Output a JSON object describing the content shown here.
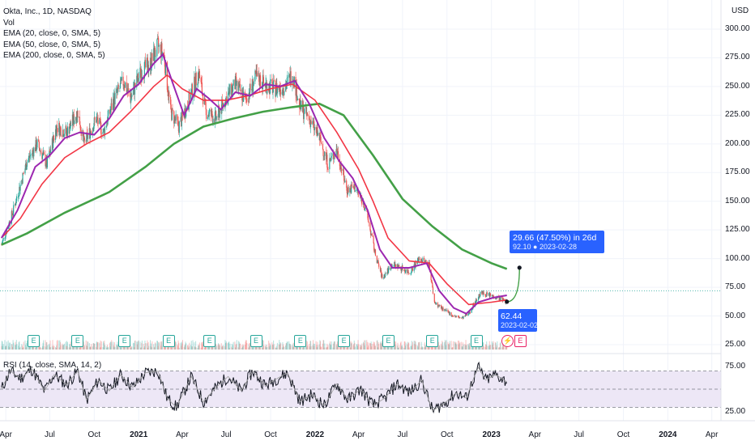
{
  "legend": {
    "title": "Okta, Inc., 1D, NASDAQ",
    "vol": "Vol",
    "ema20": "EMA (20, close, 0, SMA, 5)",
    "ema50": "EMA (50, close, 0, SMA, 5)",
    "ema200": "EMA (200, close, 0, SMA, 5)"
  },
  "rsi_legend": "RSI (14, close, SMA, 14, 2)",
  "currency": "USD",
  "y_ticks": [
    "300.00",
    "275.00",
    "250.00",
    "225.00",
    "200.00",
    "175.00",
    "150.00",
    "125.00",
    "100.00",
    "75.00",
    "50.00",
    "25.00"
  ],
  "rsi_ticks": [
    "75.00",
    "25.00"
  ],
  "x_ticks": [
    {
      "label": "Apr",
      "bold": false
    },
    {
      "label": "Jul",
      "bold": false
    },
    {
      "label": "Oct",
      "bold": false
    },
    {
      "label": "2021",
      "bold": true
    },
    {
      "label": "Apr",
      "bold": false
    },
    {
      "label": "Jul",
      "bold": false
    },
    {
      "label": "Oct",
      "bold": false
    },
    {
      "label": "2022",
      "bold": true
    },
    {
      "label": "Apr",
      "bold": false
    },
    {
      "label": "Jul",
      "bold": false
    },
    {
      "label": "Oct",
      "bold": false
    },
    {
      "label": "2023",
      "bold": true
    },
    {
      "label": "Apr",
      "bold": false
    },
    {
      "label": "Jul",
      "bold": false
    },
    {
      "label": "Oct",
      "bold": false
    },
    {
      "label": "2024",
      "bold": true
    },
    {
      "label": "Apr",
      "bold": false
    }
  ],
  "callouts": {
    "target": {
      "line1": "29.66 (47.50%) in 26d",
      "line2": "92.10 ● 2023-02-28"
    },
    "current": {
      "line1": "62.44",
      "line2": "2023-02-02"
    }
  },
  "events": {
    "earnings_label": "E",
    "dividend_label": "⚡"
  },
  "colors": {
    "up": "#26a69a",
    "down": "#ef5350",
    "ema20": "#9c27b0",
    "ema50": "#f23645",
    "ema200": "#43a047",
    "accent": "#2962ff",
    "rsi_band": "#ede7f6",
    "rsi_line": "#131722"
  },
  "chart_data": {
    "type": "line",
    "symbol": "Okta, Inc.",
    "interval": "1D",
    "exchange": "NASDAQ",
    "y_range": [
      25,
      305
    ],
    "x_range": [
      "2020-03-20",
      "2024-04-20"
    ],
    "close_series": [
      [
        "2020-03-23",
        112
      ],
      [
        "2020-04-15",
        140
      ],
      [
        "2020-05-15",
        185
      ],
      [
        "2020-06-05",
        200
      ],
      [
        "2020-06-25",
        182
      ],
      [
        "2020-07-15",
        215
      ],
      [
        "2020-08-05",
        210
      ],
      [
        "2020-08-28",
        228
      ],
      [
        "2020-09-10",
        200
      ],
      [
        "2020-10-05",
        222
      ],
      [
        "2020-10-20",
        210
      ],
      [
        "2020-11-10",
        238
      ],
      [
        "2020-12-01",
        255
      ],
      [
        "2020-12-15",
        240
      ],
      [
        "2021-01-05",
        262
      ],
      [
        "2021-01-25",
        270
      ],
      [
        "2021-02-10",
        285
      ],
      [
        "2021-02-22",
        278
      ],
      [
        "2021-03-08",
        228
      ],
      [
        "2021-03-25",
        215
      ],
      [
        "2021-04-15",
        238
      ],
      [
        "2021-05-05",
        262
      ],
      [
        "2021-05-20",
        228
      ],
      [
        "2021-06-10",
        222
      ],
      [
        "2021-07-01",
        240
      ],
      [
        "2021-07-20",
        252
      ],
      [
        "2021-08-10",
        238
      ],
      [
        "2021-09-01",
        258
      ],
      [
        "2021-09-20",
        252
      ],
      [
        "2021-10-10",
        248
      ],
      [
        "2021-11-01",
        250
      ],
      [
        "2021-11-15",
        262
      ],
      [
        "2021-12-01",
        232
      ],
      [
        "2021-12-20",
        222
      ],
      [
        "2022-01-10",
        205
      ],
      [
        "2022-01-28",
        182
      ],
      [
        "2022-02-15",
        195
      ],
      [
        "2022-03-08",
        160
      ],
      [
        "2022-03-25",
        162
      ],
      [
        "2022-04-15",
        145
      ],
      [
        "2022-05-05",
        105
      ],
      [
        "2022-05-20",
        83
      ],
      [
        "2022-06-10",
        95
      ],
      [
        "2022-06-28",
        92
      ],
      [
        "2022-07-15",
        88
      ],
      [
        "2022-08-05",
        100
      ],
      [
        "2022-08-25",
        95
      ],
      [
        "2022-09-05",
        62
      ],
      [
        "2022-09-25",
        55
      ],
      [
        "2022-10-15",
        50
      ],
      [
        "2022-11-01",
        48
      ],
      [
        "2022-11-15",
        52
      ],
      [
        "2022-11-28",
        62
      ],
      [
        "2022-12-10",
        70
      ],
      [
        "2022-12-28",
        68
      ],
      [
        "2023-01-15",
        66
      ],
      [
        "2023-02-02",
        62.44
      ]
    ],
    "ema20_series": [
      [
        "2020-03-23",
        118
      ],
      [
        "2020-04-25",
        142
      ],
      [
        "2020-06-01",
        180
      ],
      [
        "2020-07-01",
        190
      ],
      [
        "2020-08-01",
        205
      ],
      [
        "2020-09-01",
        210
      ],
      [
        "2020-10-01",
        208
      ],
      [
        "2020-11-01",
        222
      ],
      [
        "2020-12-01",
        242
      ],
      [
        "2021-01-01",
        252
      ],
      [
        "2021-02-01",
        270
      ],
      [
        "2021-02-20",
        278
      ],
      [
        "2021-03-15",
        250
      ],
      [
        "2021-04-05",
        225
      ],
      [
        "2021-05-01",
        248
      ],
      [
        "2021-05-25",
        240
      ],
      [
        "2021-06-20",
        230
      ],
      [
        "2021-07-20",
        245
      ],
      [
        "2021-08-20",
        242
      ],
      [
        "2021-09-20",
        252
      ],
      [
        "2021-10-20",
        250
      ],
      [
        "2021-11-20",
        255
      ],
      [
        "2021-12-20",
        235
      ],
      [
        "2022-01-20",
        205
      ],
      [
        "2022-02-20",
        185
      ],
      [
        "2022-03-20",
        170
      ],
      [
        "2022-04-20",
        142
      ],
      [
        "2022-05-15",
        108
      ],
      [
        "2022-06-10",
        92
      ],
      [
        "2022-07-15",
        92
      ],
      [
        "2022-08-20",
        96
      ],
      [
        "2022-09-15",
        72
      ],
      [
        "2022-10-15",
        57
      ],
      [
        "2022-11-10",
        52
      ],
      [
        "2022-12-05",
        62
      ],
      [
        "2023-01-05",
        66
      ],
      [
        "2023-02-02",
        68
      ]
    ],
    "ema50_series": [
      [
        "2020-03-23",
        118
      ],
      [
        "2020-05-01",
        135
      ],
      [
        "2020-06-15",
        165
      ],
      [
        "2020-08-01",
        188
      ],
      [
        "2020-09-15",
        200
      ],
      [
        "2020-11-01",
        210
      ],
      [
        "2020-12-15",
        228
      ],
      [
        "2021-02-01",
        250
      ],
      [
        "2021-03-01",
        260
      ],
      [
        "2021-04-01",
        248
      ],
      [
        "2021-05-15",
        238
      ],
      [
        "2021-07-01",
        238
      ],
      [
        "2021-08-15",
        242
      ],
      [
        "2021-10-01",
        248
      ],
      [
        "2021-11-15",
        252
      ],
      [
        "2022-01-01",
        238
      ],
      [
        "2022-02-15",
        210
      ],
      [
        "2022-04-01",
        178
      ],
      [
        "2022-05-01",
        150
      ],
      [
        "2022-06-01",
        118
      ],
      [
        "2022-07-15",
        98
      ],
      [
        "2022-08-25",
        96
      ],
      [
        "2022-10-01",
        78
      ],
      [
        "2022-11-15",
        60
      ],
      [
        "2023-01-01",
        62
      ],
      [
        "2023-02-02",
        64
      ]
    ],
    "ema200_series": [
      [
        "2020-03-23",
        112
      ],
      [
        "2020-05-15",
        122
      ],
      [
        "2020-08-01",
        140
      ],
      [
        "2020-11-01",
        158
      ],
      [
        "2021-01-15",
        180
      ],
      [
        "2021-03-15",
        200
      ],
      [
        "2021-05-15",
        215
      ],
      [
        "2021-07-15",
        222
      ],
      [
        "2021-09-15",
        228
      ],
      [
        "2021-11-15",
        232
      ],
      [
        "2022-01-10",
        235
      ],
      [
        "2022-03-01",
        225
      ],
      [
        "2022-05-01",
        190
      ],
      [
        "2022-07-01",
        152
      ],
      [
        "2022-09-01",
        128
      ],
      [
        "2022-11-01",
        108
      ],
      [
        "2023-01-01",
        96
      ],
      [
        "2023-02-02",
        91
      ]
    ],
    "rsi_series": [
      [
        "2020-03-23",
        50
      ],
      [
        "2020-04-10",
        70
      ],
      [
        "2020-05-01",
        62
      ],
      [
        "2020-05-25",
        72
      ],
      [
        "2020-06-20",
        48
      ],
      [
        "2020-07-10",
        66
      ],
      [
        "2020-08-05",
        55
      ],
      [
        "2020-08-28",
        70
      ],
      [
        "2020-09-15",
        38
      ],
      [
        "2020-10-10",
        60
      ],
      [
        "2020-11-01",
        48
      ],
      [
        "2020-11-25",
        66
      ],
      [
        "2020-12-20",
        52
      ],
      [
        "2021-01-15",
        68
      ],
      [
        "2021-02-10",
        70
      ],
      [
        "2021-03-01",
        40
      ],
      [
        "2021-03-20",
        30
      ],
      [
        "2021-04-20",
        64
      ],
      [
        "2021-05-15",
        36
      ],
      [
        "2021-06-10",
        52
      ],
      [
        "2021-07-05",
        64
      ],
      [
        "2021-08-01",
        48
      ],
      [
        "2021-08-25",
        70
      ],
      [
        "2021-09-20",
        54
      ],
      [
        "2021-10-15",
        62
      ],
      [
        "2021-11-05",
        68
      ],
      [
        "2021-12-01",
        36
      ],
      [
        "2021-12-25",
        44
      ],
      [
        "2022-01-20",
        32
      ],
      [
        "2022-02-15",
        56
      ],
      [
        "2022-03-10",
        38
      ],
      [
        "2022-04-05",
        50
      ],
      [
        "2022-05-01",
        32
      ],
      [
        "2022-05-25",
        40
      ],
      [
        "2022-06-20",
        56
      ],
      [
        "2022-07-15",
        46
      ],
      [
        "2022-08-10",
        60
      ],
      [
        "2022-09-01",
        26
      ],
      [
        "2022-09-25",
        34
      ],
      [
        "2022-10-20",
        46
      ],
      [
        "2022-11-10",
        40
      ],
      [
        "2022-11-25",
        62
      ],
      [
        "2022-12-05",
        74
      ],
      [
        "2022-12-20",
        60
      ],
      [
        "2023-01-10",
        66
      ],
      [
        "2023-02-02",
        58
      ]
    ],
    "rsi_range": [
      15,
      80
    ],
    "rsi_levels": [
      70,
      50,
      30
    ],
    "current_price": 62.44,
    "target_price": 92.1,
    "projection": {
      "from_date": "2023-02-02",
      "to_date": "2023-02-28",
      "change": "29.66 (47.50%) in 26d"
    },
    "earnings_dates": [
      "2020-05-28",
      "2020-08-27",
      "2020-12-02",
      "2021-03-03",
      "2021-05-27",
      "2021-08-31",
      "2021-12-01",
      "2022-03-01",
      "2022-06-01",
      "2022-08-31",
      "2022-11-30",
      "2023-03-01"
    ],
    "dividend_dates": [
      "2023-02-15"
    ],
    "grid": true
  }
}
